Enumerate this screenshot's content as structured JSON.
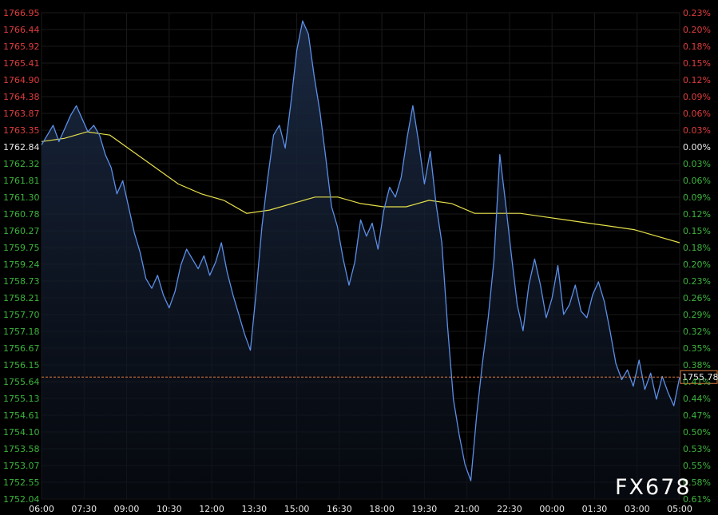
{
  "chart_data": {
    "type": "area",
    "title": "",
    "xlabel": "",
    "ylabel": "",
    "watermark": "FX678",
    "ylim": [
      1752.04,
      1766.95
    ],
    "prev_close": 1762.84,
    "y_ticks": [
      "1766.95",
      "1766.44",
      "1765.92",
      "1765.41",
      "1764.90",
      "1764.38",
      "1763.87",
      "1763.35",
      "1762.84",
      "1762.32",
      "1761.81",
      "1761.30",
      "1760.78",
      "1760.27",
      "1759.75",
      "1759.24",
      "1758.73",
      "1758.21",
      "1757.70",
      "1757.18",
      "1756.67",
      "1756.15",
      "1755.64",
      "1755.13",
      "1754.61",
      "1754.10",
      "1753.58",
      "1753.07",
      "1752.55",
      "1752.04"
    ],
    "pct_ticks": [
      "0.23%",
      "0.20%",
      "0.18%",
      "0.15%",
      "0.12%",
      "0.09%",
      "0.06%",
      "0.03%",
      "0.00%",
      "0.03%",
      "0.06%",
      "0.09%",
      "0.12%",
      "0.15%",
      "0.18%",
      "0.20%",
      "0.23%",
      "0.26%",
      "0.29%",
      "0.32%",
      "0.35%",
      "0.38%",
      "0.41%",
      "0.44%",
      "0.47%",
      "0.50%",
      "0.53%",
      "0.55%",
      "0.58%",
      "0.61%"
    ],
    "x_ticks": [
      "06:00",
      "07:30",
      "09:00",
      "10:30",
      "12:00",
      "13:30",
      "15:00",
      "16:30",
      "18:00",
      "19:30",
      "21:00",
      "22:30",
      "00:00",
      "01:30",
      "03:00",
      "05:00"
    ],
    "current_price": "1755.78",
    "current_value": 1755.78,
    "colors": {
      "price_line": "#5b8fe8",
      "moving_average": "#e6e04a",
      "up_label": "#e03c3c",
      "down_label": "#3cb43c",
      "neutral_label": "#e8e8e8",
      "current_line": "#e07a3c",
      "grid": "#1a1a1a"
    },
    "series": [
      {
        "values": [
          1762.9,
          1763.2,
          1763.5,
          1763.0,
          1763.4,
          1763.8,
          1764.1,
          1763.7,
          1763.3,
          1763.5,
          1763.2,
          1762.6,
          1762.2,
          1761.4,
          1761.8,
          1761.0,
          1760.2,
          1759.6,
          1758.8,
          1758.5,
          1758.9,
          1758.3,
          1757.9,
          1758.4,
          1759.2,
          1759.7,
          1759.4,
          1759.1,
          1759.5,
          1758.9,
          1759.3,
          1759.9,
          1759.0,
          1758.3,
          1757.7,
          1757.1,
          1756.6,
          1758.4,
          1760.4,
          1761.9,
          1763.2,
          1763.5,
          1762.8,
          1764.2,
          1765.8,
          1766.7,
          1766.3,
          1765.0,
          1763.9,
          1762.5,
          1761.0,
          1760.4,
          1759.4,
          1758.6,
          1759.3,
          1760.6,
          1760.1,
          1760.5,
          1759.7,
          1760.9,
          1761.6,
          1761.3,
          1761.9,
          1763.1,
          1764.1,
          1763.0,
          1761.7,
          1762.7,
          1761.1,
          1759.9,
          1757.3,
          1755.1,
          1754.0,
          1753.1,
          1752.6,
          1754.6,
          1756.2,
          1757.6,
          1759.4,
          1762.6,
          1761.1,
          1759.5,
          1758.0,
          1757.2,
          1758.6,
          1759.4,
          1758.6,
          1757.6,
          1758.2,
          1759.2,
          1757.7,
          1758.0,
          1758.6,
          1757.8,
          1757.6,
          1758.3,
          1758.7,
          1758.1,
          1757.2,
          1756.2,
          1755.7,
          1756.0,
          1755.5,
          1756.3,
          1755.4,
          1755.9,
          1755.1,
          1755.8,
          1755.3,
          1754.9,
          1755.78
        ],
        "color": "#5b8fe8"
      },
      {
        "values": [
          1763.0,
          1763.1,
          1763.3,
          1763.2,
          1762.7,
          1762.2,
          1761.7,
          1761.4,
          1761.2,
          1760.8,
          1760.9,
          1761.1,
          1761.3,
          1761.3,
          1761.1,
          1761.0,
          1761.0,
          1761.2,
          1761.1,
          1760.8,
          1760.8,
          1760.8,
          1760.7,
          1760.6,
          1760.5,
          1760.4,
          1760.3,
          1760.1,
          1759.9
        ],
        "color": "#e6e04a"
      }
    ]
  }
}
